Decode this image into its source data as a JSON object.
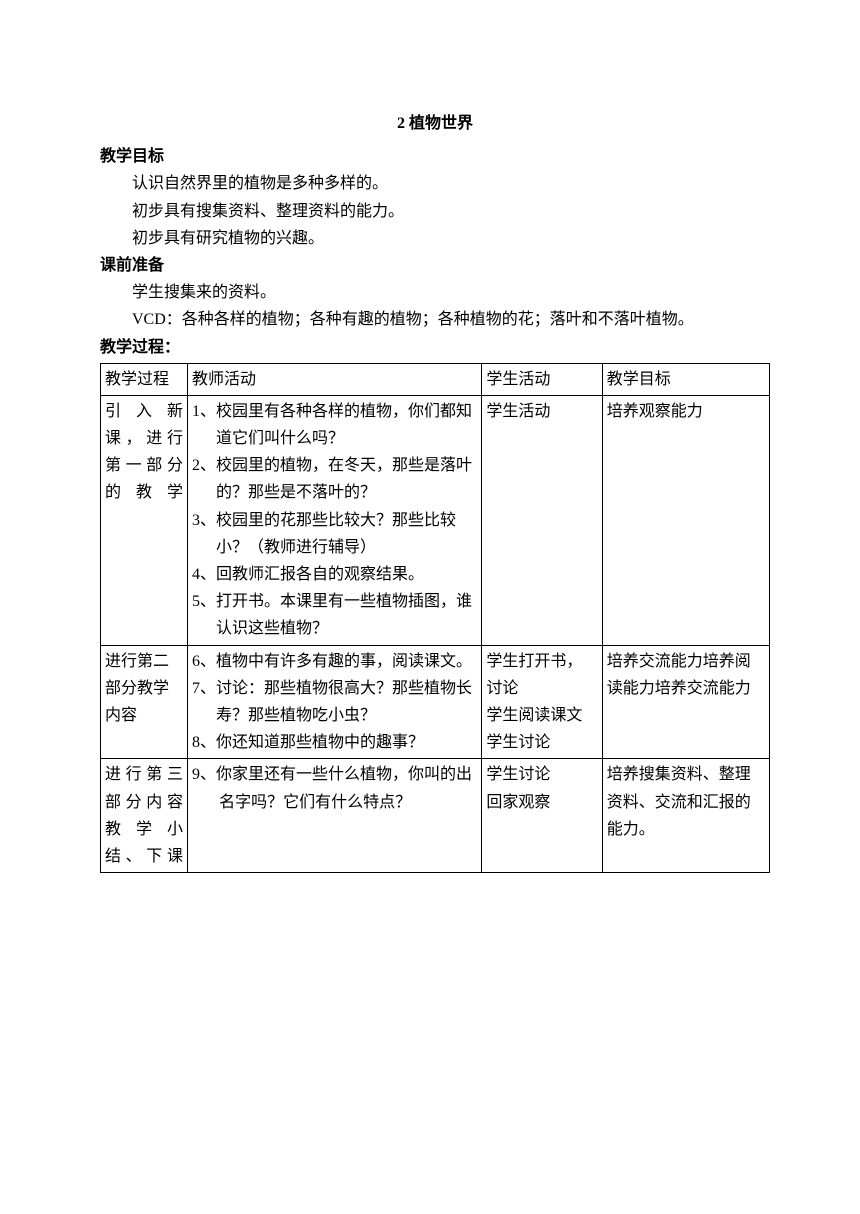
{
  "title": "2 植物世界",
  "sections": {
    "objectives": {
      "header": "教学目标",
      "items": [
        "认识自然界里的植物是多种多样的。",
        "初步具有搜集资料、整理资料的能力。",
        "初步具有研究植物的兴趣。"
      ]
    },
    "preparation": {
      "header": "课前准备",
      "items": [
        "学生搜集来的资料。",
        "VCD：各种各样的植物；各种有趣的植物；各种植物的花；落叶和不落叶植物。"
      ]
    },
    "process_header": "教学过程："
  },
  "table": {
    "header": {
      "c1": "教学过程",
      "c2": "教师活动",
      "c3": "学生活动",
      "c4": "教学目标"
    },
    "rows": [
      {
        "c1": "引入新课，进行第一部分的教学",
        "c2": [
          "1、校园里有各种各样的植物，你们都知道它们叫什么吗？",
          "2、校园里的植物，在冬天，那些是落叶的？那些是不落叶的？",
          "3、校园里的花那些比较大？那些比较小？（教师进行辅导）",
          "4、回教师汇报各自的观察结果。",
          "5、打开书。本课里有一些植物插图，谁认识这些植物？"
        ],
        "c3": "学生活动",
        "c4": "培养观察能力"
      },
      {
        "c1": "进行第二部分教学内容",
        "c2": [
          "6、植物中有许多有趣的事，阅读课文。",
          "7、讨论：那些植物很高大？那些植物长寿？那些植物吃小虫？",
          "8、你还知道那些植物中的趣事？"
        ],
        "c3": "学生打开书，讨论\n学生阅读课文\n学生讨论",
        "c4": "培养交流能力培养阅读能力培养交流能力"
      },
      {
        "c1": "进行第三部分内容",
        "c1b": "教学小结、下课",
        "c2_plain": "9、你家里还有一些什么植物，你叫的出名字吗？它们有什么特点？",
        "c3": "学生讨论\n回家观察",
        "c4": "培养搜集资料、整理资料、交流和汇报的能力。"
      }
    ]
  }
}
